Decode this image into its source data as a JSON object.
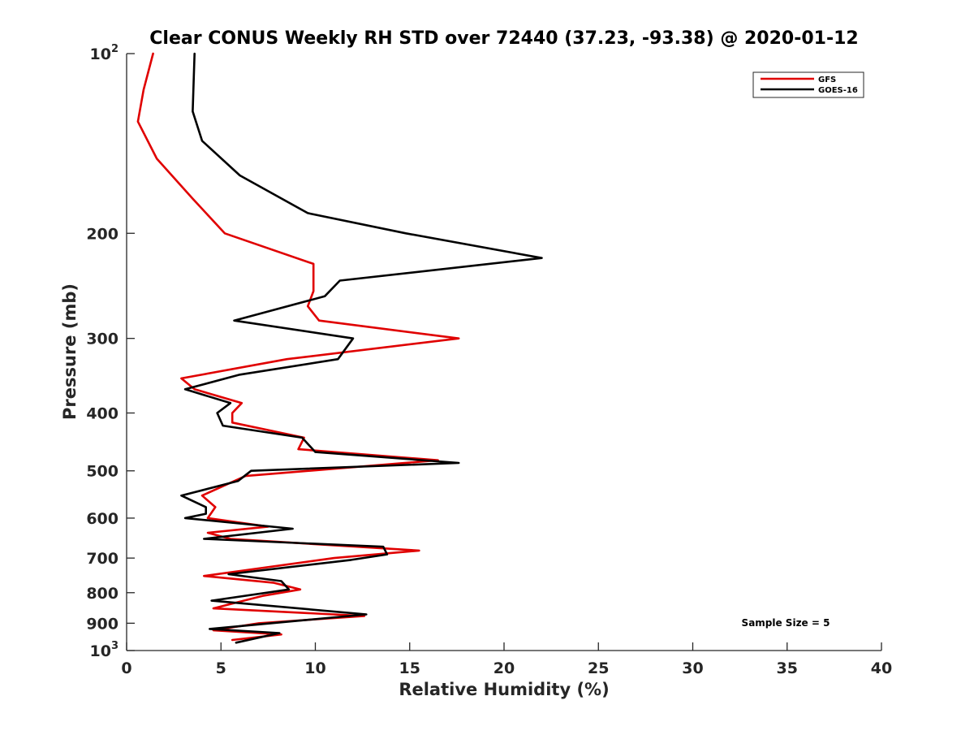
{
  "chart_data": {
    "type": "line",
    "title": "Clear CONUS Weekly RH STD over 72440 (37.23, -93.38) @ 2020-01-12",
    "xlabel": "Relative Humidity (%)",
    "ylabel": "Pressure (mb)",
    "xlim": [
      0,
      40
    ],
    "ylim": [
      100,
      1000
    ],
    "yscale": "log",
    "y_reversed": true,
    "xticks": [
      0,
      5,
      10,
      15,
      20,
      25,
      30,
      35,
      40
    ],
    "xtick_labels": [
      "0",
      "5",
      "10",
      "15",
      "20",
      "25",
      "30",
      "35",
      "40"
    ],
    "yticks": [
      {
        "value": 100,
        "base": "10",
        "exp": "2"
      },
      {
        "value": 200,
        "label": "200"
      },
      {
        "value": 300,
        "label": "300"
      },
      {
        "value": 400,
        "label": "400"
      },
      {
        "value": 500,
        "label": "500"
      },
      {
        "value": 600,
        "label": "600"
      },
      {
        "value": 700,
        "label": "700"
      },
      {
        "value": 800,
        "label": "800"
      },
      {
        "value": 900,
        "label": "900"
      },
      {
        "value": 1000,
        "base": "10",
        "exp": "3"
      }
    ],
    "grid": false,
    "legend_position": "top-right",
    "annotation": "Sample Size = 5",
    "series": [
      {
        "name": "GFS",
        "color": "#e00000",
        "points": [
          [
            1.4,
            100
          ],
          [
            0.9,
            115
          ],
          [
            0.6,
            130
          ],
          [
            1.6,
            150
          ],
          [
            3.5,
            175
          ],
          [
            5.2,
            200
          ],
          [
            9.9,
            225
          ],
          [
            9.9,
            250
          ],
          [
            9.6,
            265
          ],
          [
            10.2,
            280
          ],
          [
            17.6,
            300
          ],
          [
            8.5,
            325
          ],
          [
            2.9,
            350
          ],
          [
            3.6,
            365
          ],
          [
            6.1,
            385
          ],
          [
            5.6,
            400
          ],
          [
            5.6,
            415
          ],
          [
            9.4,
            440
          ],
          [
            9.1,
            460
          ],
          [
            16.5,
            480
          ],
          [
            6.3,
            510
          ],
          [
            4.0,
            550
          ],
          [
            4.7,
            575
          ],
          [
            4.3,
            600
          ],
          [
            7.5,
            620
          ],
          [
            4.3,
            635
          ],
          [
            5.5,
            650
          ],
          [
            15.5,
            680
          ],
          [
            11.0,
            700
          ],
          [
            4.1,
            750
          ],
          [
            7.8,
            770
          ],
          [
            9.2,
            790
          ],
          [
            7.2,
            810
          ],
          [
            4.6,
            850
          ],
          [
            12.6,
            875
          ],
          [
            7.0,
            900
          ],
          [
            4.6,
            925
          ],
          [
            8.2,
            940
          ],
          [
            5.6,
            960
          ]
        ]
      },
      {
        "name": "GOES-16",
        "color": "#000000",
        "points": [
          [
            3.6,
            100
          ],
          [
            3.5,
            125
          ],
          [
            4.0,
            140
          ],
          [
            6.0,
            160
          ],
          [
            9.6,
            185
          ],
          [
            14.8,
            200
          ],
          [
            22.0,
            220
          ],
          [
            11.3,
            240
          ],
          [
            10.5,
            255
          ],
          [
            5.7,
            280
          ],
          [
            12.0,
            300
          ],
          [
            11.2,
            325
          ],
          [
            6.0,
            345
          ],
          [
            3.1,
            365
          ],
          [
            5.5,
            385
          ],
          [
            4.8,
            400
          ],
          [
            5.1,
            420
          ],
          [
            9.3,
            440
          ],
          [
            10.0,
            465
          ],
          [
            17.6,
            485
          ],
          [
            6.6,
            500
          ],
          [
            5.9,
            520
          ],
          [
            2.9,
            550
          ],
          [
            4.2,
            575
          ],
          [
            4.2,
            590
          ],
          [
            3.1,
            600
          ],
          [
            8.8,
            625
          ],
          [
            4.1,
            650
          ],
          [
            13.6,
            670
          ],
          [
            13.8,
            690
          ],
          [
            11.9,
            705
          ],
          [
            5.4,
            745
          ],
          [
            8.2,
            765
          ],
          [
            8.6,
            790
          ],
          [
            4.5,
            825
          ],
          [
            12.7,
            870
          ],
          [
            4.4,
            920
          ],
          [
            8.1,
            935
          ],
          [
            5.8,
            970
          ]
        ]
      }
    ]
  }
}
